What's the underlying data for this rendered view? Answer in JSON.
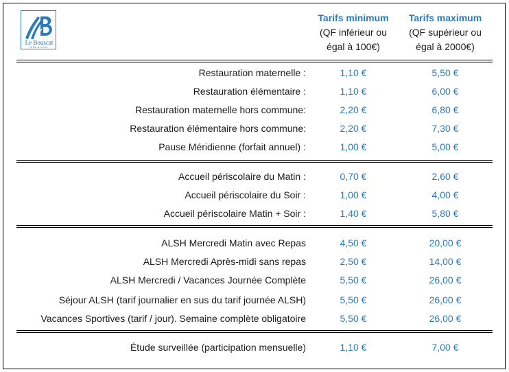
{
  "logo": {
    "name": "Le Bouscat",
    "tagline": "ville à vivre",
    "color": "#2a7bbd"
  },
  "header": {
    "min": {
      "title": "Tarifs minimum",
      "line1": "(QF inférieur ou",
      "line2": "égal à 100€)"
    },
    "max": {
      "title": "Tarifs maximum",
      "line1": "(QF supérieur ou",
      "line2": "égal à 2000€)"
    }
  },
  "sections": [
    {
      "rows": [
        {
          "label": "Restauration maternelle :",
          "min": "1,10 €",
          "max": "5,50 €"
        },
        {
          "label": "Restauration élémentaire :",
          "min": "1,10 €",
          "max": "6,00 €"
        },
        {
          "label": "Restauration maternelle hors commune:",
          "min": "2,20 €",
          "max": "6,80 €"
        },
        {
          "label": "Restauration élémentaire hors commune:",
          "min": "2,20 €",
          "max": "7,30 €"
        },
        {
          "label": "Pause Méridienne (forfait annuel) :",
          "min": "1,00 €",
          "max": "5,00 €"
        }
      ]
    },
    {
      "rows": [
        {
          "label": "Accueil périscolaire du Matin :",
          "min": "0,70 €",
          "max": "2,60 €"
        },
        {
          "label": "Accueil périscolaire du Soir :",
          "min": "1,00 €",
          "max": "4,00 €"
        },
        {
          "label": "Accueil périscolaire Matin + Soir :",
          "min": "1,40 €",
          "max": "5,80 €"
        }
      ]
    },
    {
      "rows": [
        {
          "label": "ALSH Mercredi Matin avec Repas",
          "min": "4,50 €",
          "max": "20,00 €"
        },
        {
          "label": "ALSH Mercredi Après-midi sans repas",
          "min": "2,50 €",
          "max": "14,00 €"
        },
        {
          "label": "ALSH Mercredi / Vacances Journée Complète",
          "min": "5,50 €",
          "max": "26,00 €"
        },
        {
          "label": "Séjour ALSH (tarif journalier en sus du tarif journée ALSH)",
          "min": "5,50 €",
          "max": "26,00 €"
        },
        {
          "label": "Vacances Sportives (tarif / jour). Semaine complète obligatoire",
          "min": "5,50 €",
          "max": "26,00 €"
        }
      ]
    },
    {
      "rows": [
        {
          "label": "Étude surveillée (participation mensuelle)",
          "min": "1,10 €",
          "max": "7,00 €"
        }
      ]
    }
  ]
}
